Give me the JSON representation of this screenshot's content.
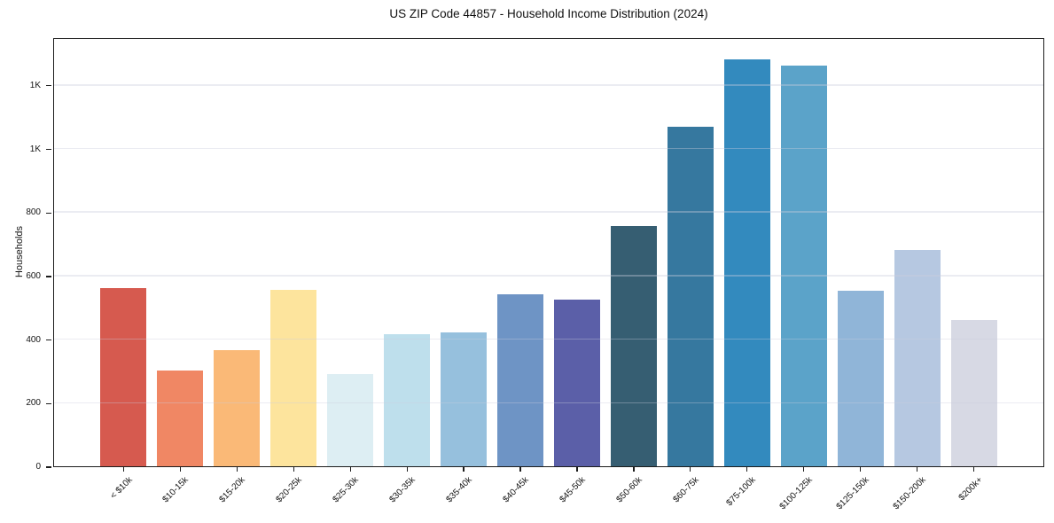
{
  "chart": {
    "title": "US ZIP Code 44857 - Household Income Distribution (2024)",
    "ylabel": "Households"
  },
  "chart_data": {
    "type": "bar",
    "title": "US ZIP Code 44857 - Household Income Distribution (2024)",
    "xlabel": "",
    "ylabel": "Households",
    "categories": [
      "< $10k",
      "$10-15k",
      "$15-20k",
      "$20-25k",
      "$25-30k",
      "$30-35k",
      "$35-40k",
      "$40-45k",
      "$45-50k",
      "$50-60k",
      "$60-75k",
      "$75-100k",
      "$100-125k",
      "$125-150k",
      "$150-200k",
      "$200k+"
    ],
    "values": [
      562,
      302,
      365,
      554,
      291,
      415,
      420,
      542,
      524,
      757,
      1068,
      1281,
      1261,
      552,
      680,
      460
    ],
    "bar_colors": [
      "#d65a4f",
      "#f08764",
      "#fab977",
      "#fde49d",
      "#ddeef3",
      "#bedfec",
      "#96c0dd",
      "#6e94c5",
      "#5b5fa8",
      "#365e72",
      "#36789f",
      "#338abe",
      "#5ba3c9",
      "#90b5d8",
      "#b6c8e1",
      "#d7d9e4"
    ],
    "ylim": [
      0,
      1350
    ],
    "yticks": {
      "values": [
        0,
        200,
        400,
        600,
        800,
        1000,
        1200
      ],
      "labels": [
        "0",
        "200",
        "400",
        "600",
        "800",
        "1K",
        "1K"
      ]
    },
    "grid": "horizontal",
    "legend": "none"
  }
}
